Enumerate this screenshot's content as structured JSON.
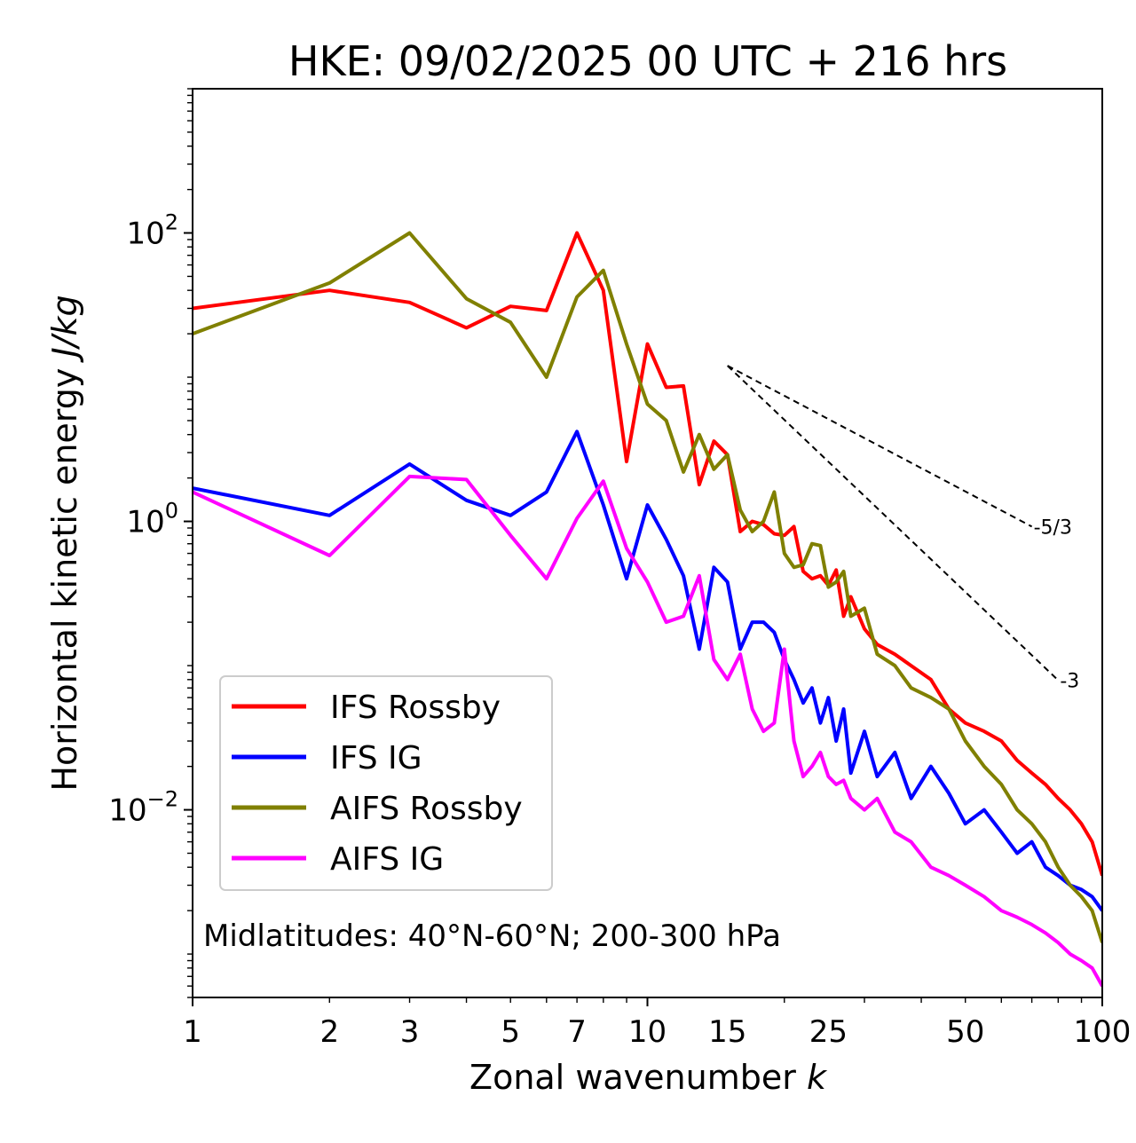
{
  "chart_data": {
    "type": "line",
    "title": "HKE: 09/02/2025 00 UTC + 216 hrs",
    "xlabel": "Zonal wavenumber k",
    "ylabel": "Horizontal kinetic energy J/kg",
    "xscale": "log",
    "yscale": "log",
    "xlim": [
      1,
      100
    ],
    "ylim": [
      0.0005,
      1000
    ],
    "grid": false,
    "legend": "lower-left",
    "annotation": "Midlatitudes: 40°N-60°N; 200-300 hPa",
    "x_ticks": [
      1,
      2,
      3,
      5,
      7,
      10,
      15,
      25,
      50,
      100
    ],
    "x_tick_labels": [
      "1",
      "2",
      "3",
      "5",
      "7",
      "10",
      "15",
      "25",
      "50",
      "100"
    ],
    "y_ticks": [
      0.01,
      1,
      100
    ],
    "y_tick_labels": [
      {
        "base": "10",
        "exp": "−2"
      },
      {
        "base": "10",
        "exp": "0"
      },
      {
        "base": "10",
        "exp": "2"
      }
    ],
    "reference_slopes": [
      {
        "label": "-5/3",
        "slope": -1.6667,
        "x": [
          15,
          70
        ],
        "y_start": 12
      },
      {
        "label": "-3",
        "slope": -3,
        "x": [
          15,
          80
        ],
        "y_start": 12
      }
    ],
    "series": [
      {
        "name": "IFS Rossby",
        "color": "#ff0000",
        "x": [
          1,
          2,
          3,
          4,
          5,
          6,
          7,
          8,
          9,
          10,
          11,
          12,
          13,
          14,
          15,
          16,
          17,
          18,
          19,
          20,
          21,
          22,
          23,
          24,
          25,
          26,
          27,
          28,
          30,
          32,
          35,
          38,
          42,
          46,
          50,
          55,
          60,
          65,
          70,
          75,
          80,
          85,
          90,
          95,
          100
        ],
        "y": [
          30,
          40,
          33,
          22,
          31,
          29,
          100,
          40,
          2.6,
          17,
          8.5,
          8.7,
          1.8,
          3.6,
          2.9,
          0.85,
          1.0,
          0.95,
          0.82,
          0.8,
          0.92,
          0.45,
          0.4,
          0.42,
          0.36,
          0.46,
          0.22,
          0.3,
          0.18,
          0.14,
          0.12,
          0.1,
          0.08,
          0.05,
          0.04,
          0.035,
          0.03,
          0.022,
          0.018,
          0.015,
          0.012,
          0.01,
          0.008,
          0.006,
          0.0035
        ]
      },
      {
        "name": "IFS IG",
        "color": "#0000ff",
        "x": [
          1,
          2,
          3,
          4,
          5,
          6,
          7,
          8,
          9,
          10,
          11,
          12,
          13,
          14,
          15,
          16,
          17,
          18,
          19,
          20,
          21,
          22,
          23,
          24,
          25,
          26,
          27,
          28,
          30,
          32,
          35,
          38,
          42,
          46,
          50,
          55,
          60,
          65,
          70,
          75,
          80,
          85,
          90,
          95,
          100
        ],
        "y": [
          1.7,
          1.1,
          2.5,
          1.4,
          1.1,
          1.6,
          4.2,
          1.3,
          0.4,
          1.3,
          0.75,
          0.42,
          0.13,
          0.48,
          0.38,
          0.13,
          0.2,
          0.2,
          0.17,
          0.11,
          0.08,
          0.055,
          0.07,
          0.04,
          0.06,
          0.03,
          0.05,
          0.018,
          0.035,
          0.017,
          0.025,
          0.012,
          0.02,
          0.013,
          0.008,
          0.01,
          0.007,
          0.005,
          0.006,
          0.004,
          0.0035,
          0.003,
          0.0028,
          0.0025,
          0.002
        ]
      },
      {
        "name": "AIFS Rossby",
        "color": "#808000",
        "x": [
          1,
          2,
          3,
          4,
          5,
          6,
          7,
          8,
          9,
          10,
          11,
          12,
          13,
          14,
          15,
          16,
          17,
          18,
          19,
          20,
          21,
          22,
          23,
          24,
          25,
          26,
          27,
          28,
          30,
          32,
          35,
          38,
          42,
          46,
          50,
          55,
          60,
          65,
          70,
          75,
          80,
          85,
          90,
          95,
          100
        ],
        "y": [
          20,
          45,
          100,
          35,
          24,
          10,
          36,
          55,
          17,
          6.5,
          5,
          2.2,
          4,
          2.3,
          2.9,
          1.2,
          0.85,
          1,
          1.6,
          0.6,
          0.48,
          0.5,
          0.7,
          0.68,
          0.35,
          0.38,
          0.45,
          0.22,
          0.25,
          0.12,
          0.1,
          0.07,
          0.06,
          0.05,
          0.03,
          0.02,
          0.015,
          0.01,
          0.008,
          0.006,
          0.004,
          0.003,
          0.0025,
          0.002,
          0.0012
        ]
      },
      {
        "name": "AIFS IG",
        "color": "#ff00ff",
        "x": [
          1,
          2,
          3,
          4,
          5,
          6,
          7,
          8,
          9,
          10,
          11,
          12,
          13,
          14,
          15,
          16,
          17,
          18,
          19,
          20,
          21,
          22,
          23,
          24,
          25,
          26,
          27,
          28,
          30,
          32,
          35,
          38,
          42,
          46,
          50,
          55,
          60,
          65,
          70,
          75,
          80,
          85,
          90,
          95,
          100
        ],
        "y": [
          1.6,
          0.58,
          2.05,
          1.95,
          0.8,
          0.4,
          1.05,
          1.9,
          0.65,
          0.38,
          0.2,
          0.22,
          0.42,
          0.11,
          0.08,
          0.12,
          0.05,
          0.035,
          0.04,
          0.13,
          0.03,
          0.017,
          0.02,
          0.025,
          0.017,
          0.015,
          0.016,
          0.012,
          0.01,
          0.012,
          0.007,
          0.006,
          0.004,
          0.0035,
          0.003,
          0.0025,
          0.002,
          0.0018,
          0.0016,
          0.0014,
          0.0012,
          0.001,
          0.0009,
          0.0008,
          0.0006
        ]
      }
    ]
  }
}
